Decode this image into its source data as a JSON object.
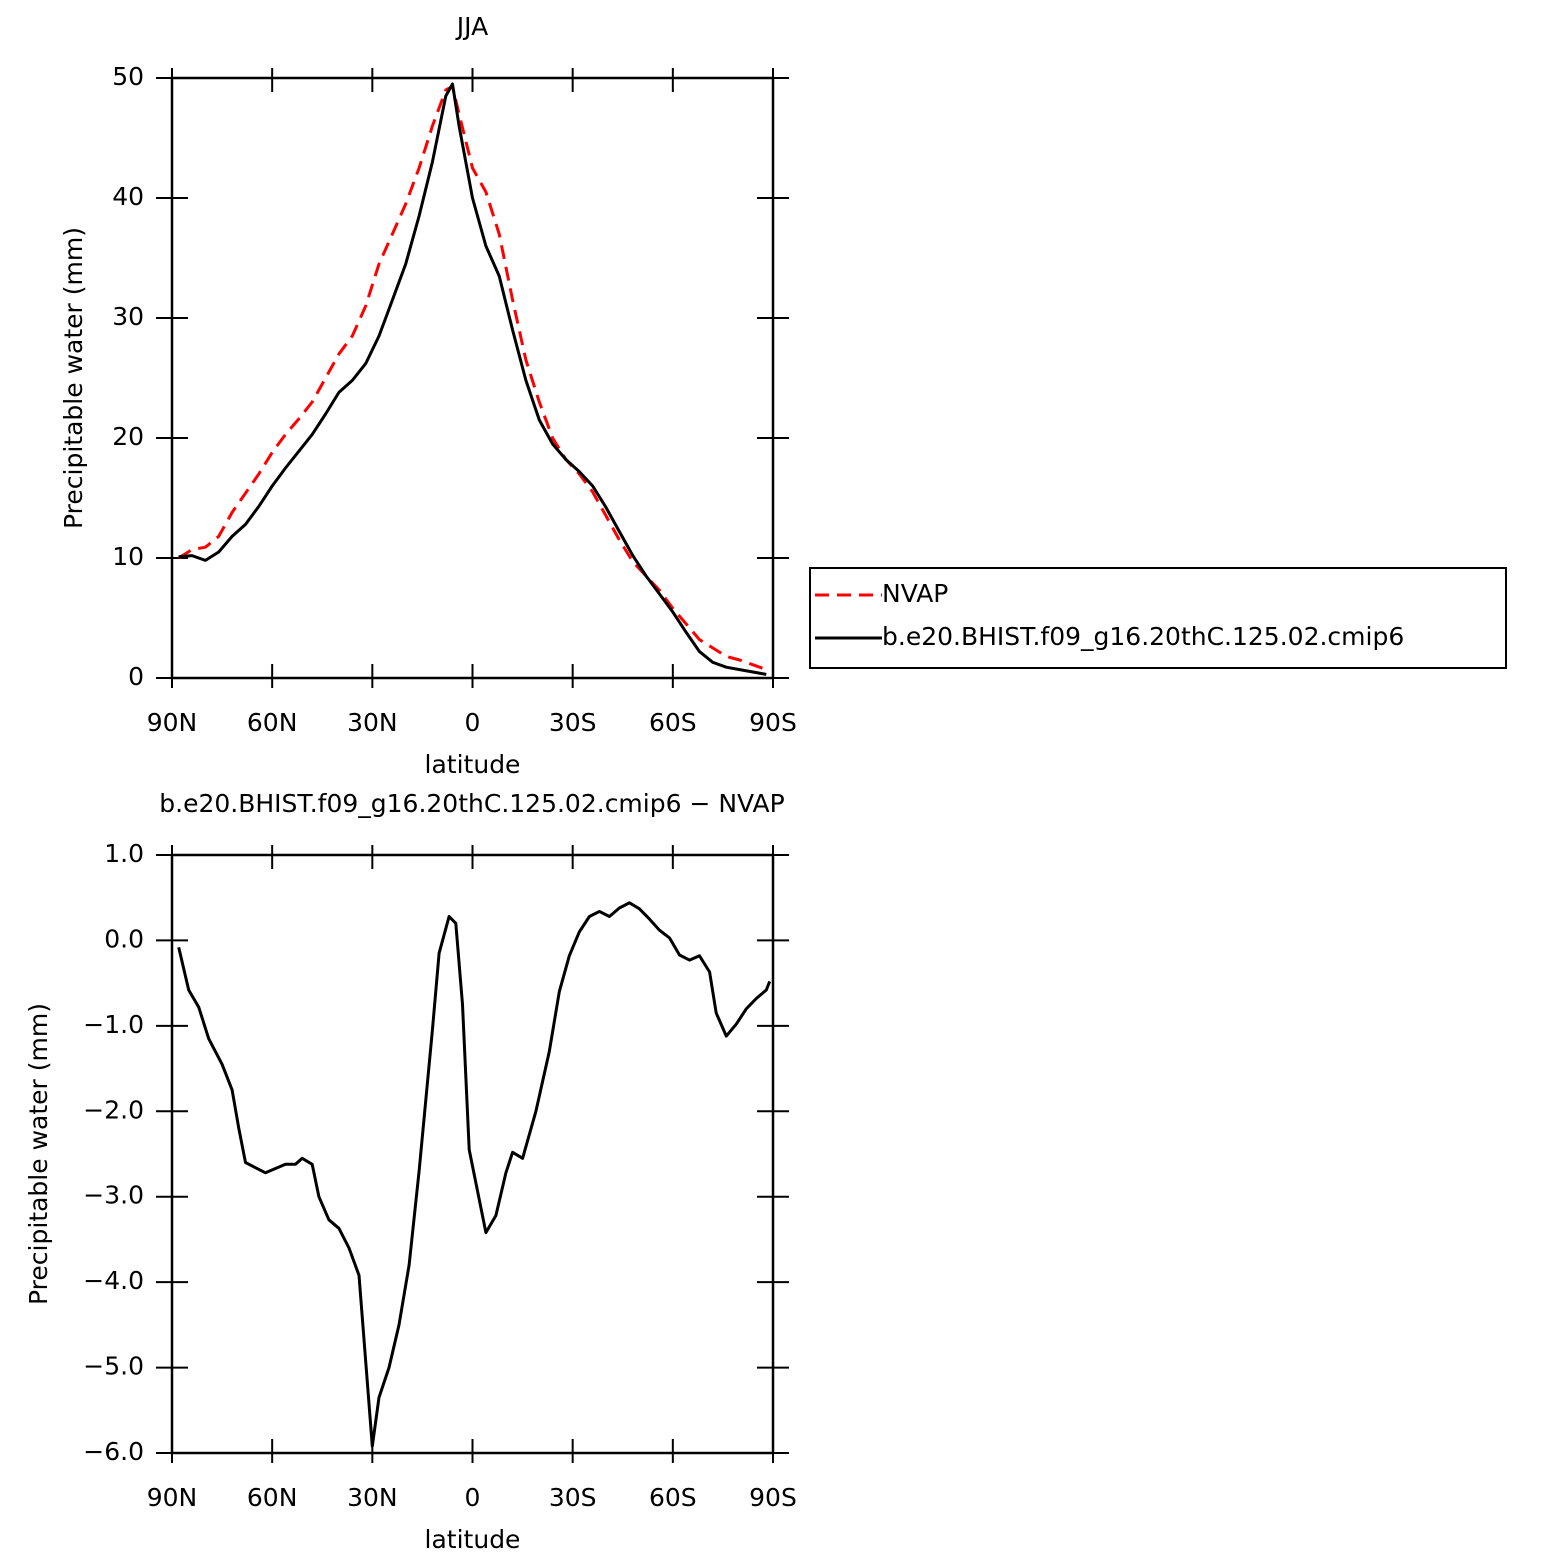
{
  "chart_data": [
    {
      "type": "line",
      "title": "JJA",
      "xlabel": "latitude",
      "ylabel": "Precipitable water (mm)",
      "x": [
        88,
        84,
        80,
        76,
        72,
        68,
        64,
        60,
        56,
        52,
        48,
        44,
        40,
        36,
        32,
        28,
        24,
        20,
        16,
        12,
        8,
        6,
        4,
        0,
        -4,
        -8,
        -12,
        -16,
        -20,
        -24,
        -28,
        -32,
        -36,
        -40,
        -44,
        -48,
        -52,
        -56,
        -60,
        -64,
        -68,
        -72,
        -76,
        -80,
        -84,
        -88
      ],
      "xlim": [
        90,
        -90
      ],
      "xticks": [
        {
          "value": 90,
          "label": "90N"
        },
        {
          "value": 60,
          "label": "60N"
        },
        {
          "value": 30,
          "label": "30N"
        },
        0,
        {
          "value": -30,
          "label": "30S"
        },
        {
          "value": -60,
          "label": "60S"
        },
        {
          "value": -90,
          "label": "90S"
        }
      ],
      "ylim": [
        0,
        50
      ],
      "yticks": [
        0,
        10,
        20,
        30,
        40,
        50
      ],
      "legend": "right",
      "series": [
        {
          "name": "NVAP",
          "color": "#ff0000",
          "dash": "dashed",
          "values": [
            10.0,
            10.7,
            10.9,
            11.8,
            13.8,
            15.4,
            17.0,
            18.8,
            20.3,
            21.6,
            23.0,
            25.0,
            27.0,
            28.5,
            31.0,
            34.5,
            37.0,
            39.5,
            42.5,
            46.0,
            49.0,
            49.3,
            47.0,
            42.5,
            40.5,
            37.0,
            31.5,
            26.5,
            23.0,
            20.0,
            18.2,
            17.0,
            15.5,
            13.5,
            11.5,
            9.7,
            8.5,
            7.3,
            5.8,
            4.5,
            3.2,
            2.5,
            1.8,
            1.5,
            1.1,
            0.7
          ]
        },
        {
          "name": "b.e20.BHIST.f09_g16.20thC.125.02.cmip6",
          "color": "#000000",
          "dash": "solid",
          "values": [
            10.1,
            10.2,
            9.8,
            10.5,
            11.8,
            12.8,
            14.3,
            16.0,
            17.5,
            18.9,
            20.3,
            22.0,
            23.8,
            24.8,
            26.2,
            28.5,
            31.5,
            34.5,
            38.5,
            43.0,
            48.5,
            49.5,
            46.0,
            40.0,
            36.0,
            33.5,
            29.0,
            24.8,
            21.5,
            19.5,
            18.2,
            17.2,
            16.0,
            14.2,
            12.2,
            10.2,
            8.5,
            7.0,
            5.5,
            3.8,
            2.2,
            1.3,
            0.9,
            0.7,
            0.5,
            0.3
          ]
        }
      ]
    },
    {
      "type": "line",
      "title": "b.e20.BHIST.f09_g16.20thC.125.02.cmip6 − NVAP",
      "xlabel": "latitude",
      "ylabel": "Precipitable water (mm)",
      "x": [
        88,
        85,
        82,
        79,
        75,
        72,
        70,
        68,
        62,
        59,
        56,
        53,
        51,
        48,
        46,
        43,
        40,
        37,
        34,
        30,
        28,
        25,
        22,
        19,
        16,
        12,
        10,
        7,
        5,
        3,
        1,
        -4,
        -7,
        -10,
        -12,
        -15,
        -19,
        -23,
        -26,
        -29,
        -32,
        -35,
        -38,
        -41,
        -44,
        -47,
        -50,
        -53,
        -56,
        -59,
        -62,
        -65,
        -68,
        -71,
        -73,
        -76,
        -79,
        -82,
        -85,
        -88,
        -89
      ],
      "xlim": [
        90,
        -90
      ],
      "xticks": [
        {
          "value": 90,
          "label": "90N"
        },
        {
          "value": 60,
          "label": "60N"
        },
        {
          "value": 30,
          "label": "30N"
        },
        0,
        {
          "value": -30,
          "label": "30S"
        },
        {
          "value": -60,
          "label": "60S"
        },
        {
          "value": -90,
          "label": "90S"
        }
      ],
      "ylim": [
        -6,
        1
      ],
      "yticks": [
        {
          "value": 1,
          "label": "1.0"
        },
        {
          "value": 0,
          "label": "0.0"
        },
        {
          "value": -1,
          "label": "−1.0"
        },
        {
          "value": -2,
          "label": "−2.0"
        },
        {
          "value": -3,
          "label": "−3.0"
        },
        {
          "value": -4,
          "label": "−4.0"
        },
        {
          "value": -5,
          "label": "−5.0"
        },
        {
          "value": -6,
          "label": "−6.0"
        }
      ],
      "color": "#000000",
      "values": [
        -0.08,
        -0.58,
        -0.78,
        -1.15,
        -1.45,
        -1.75,
        -2.2,
        -2.6,
        -2.72,
        -2.67,
        -2.62,
        -2.62,
        -2.55,
        -2.62,
        -3.0,
        -3.27,
        -3.37,
        -3.6,
        -3.92,
        -5.92,
        -5.35,
        -5.0,
        -4.5,
        -3.8,
        -2.7,
        -1.05,
        -0.15,
        0.28,
        0.2,
        -0.75,
        -2.45,
        -3.42,
        -3.22,
        -2.72,
        -2.48,
        -2.55,
        -2.0,
        -1.3,
        -0.6,
        -0.18,
        0.1,
        0.28,
        0.34,
        0.28,
        0.38,
        0.44,
        0.37,
        0.25,
        0.12,
        0.03,
        -0.17,
        -0.23,
        -0.18,
        -0.37,
        -0.85,
        -1.12,
        -0.98,
        -0.8,
        -0.68,
        -0.58,
        -0.48
      ]
    }
  ]
}
